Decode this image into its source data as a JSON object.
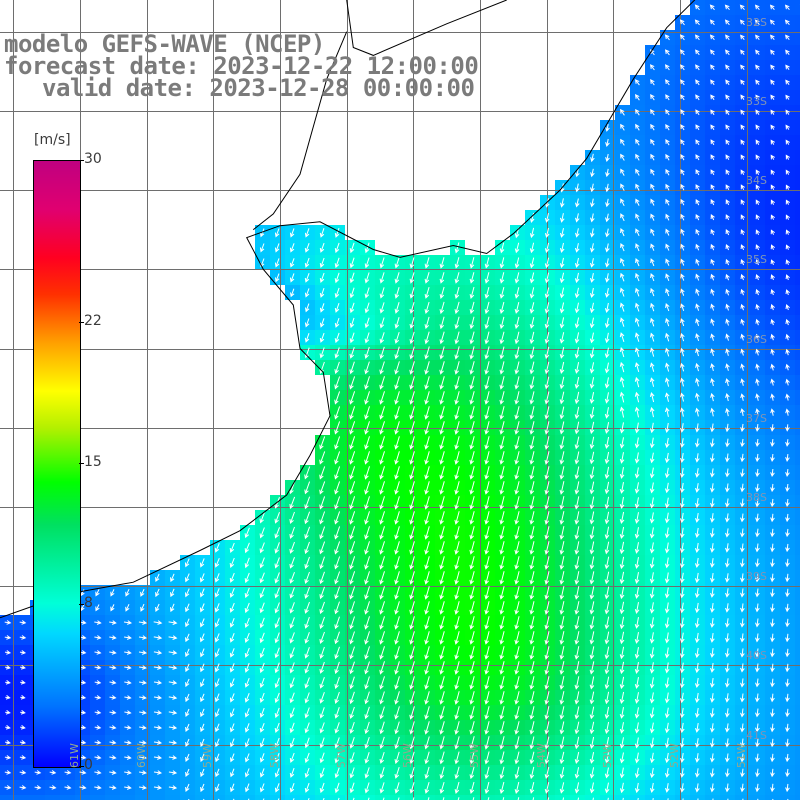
{
  "title": {
    "line1": "modelo GEFS-WAVE (NCEP)",
    "line2": "forecast date: 2023-12-22 12:00:00",
    "line3": "valid date: 2023-12-28 00:00:00"
  },
  "colorbar": {
    "unit": "[m/s]",
    "min": 0,
    "max": 30,
    "ticks": [
      {
        "value": 0,
        "label": "0"
      },
      {
        "value": 8,
        "label": "8"
      },
      {
        "value": 15,
        "label": "15"
      },
      {
        "value": 22,
        "label": "22"
      },
      {
        "value": 30,
        "label": "30"
      }
    ]
  },
  "lat_labels": [
    "32S",
    "33S",
    "34S",
    "35S",
    "36S",
    "37S",
    "38S",
    "39S",
    "40S",
    "41S"
  ],
  "lon_labels": [
    "61W",
    "60W",
    "59W",
    "58W",
    "57W",
    "56W",
    "55W",
    "54W",
    "53W",
    "52W",
    "51W"
  ],
  "colors": {
    "land": "#ffffff",
    "grid": "#6e6e6e",
    "coast": "#000000",
    "arrows": "#ffffff",
    "title": "#7b7b7b"
  },
  "map_region": {
    "lon_min": -62.2,
    "lon_max": -50.2,
    "lat_min": -41.7,
    "lat_max": -31.6
  }
}
